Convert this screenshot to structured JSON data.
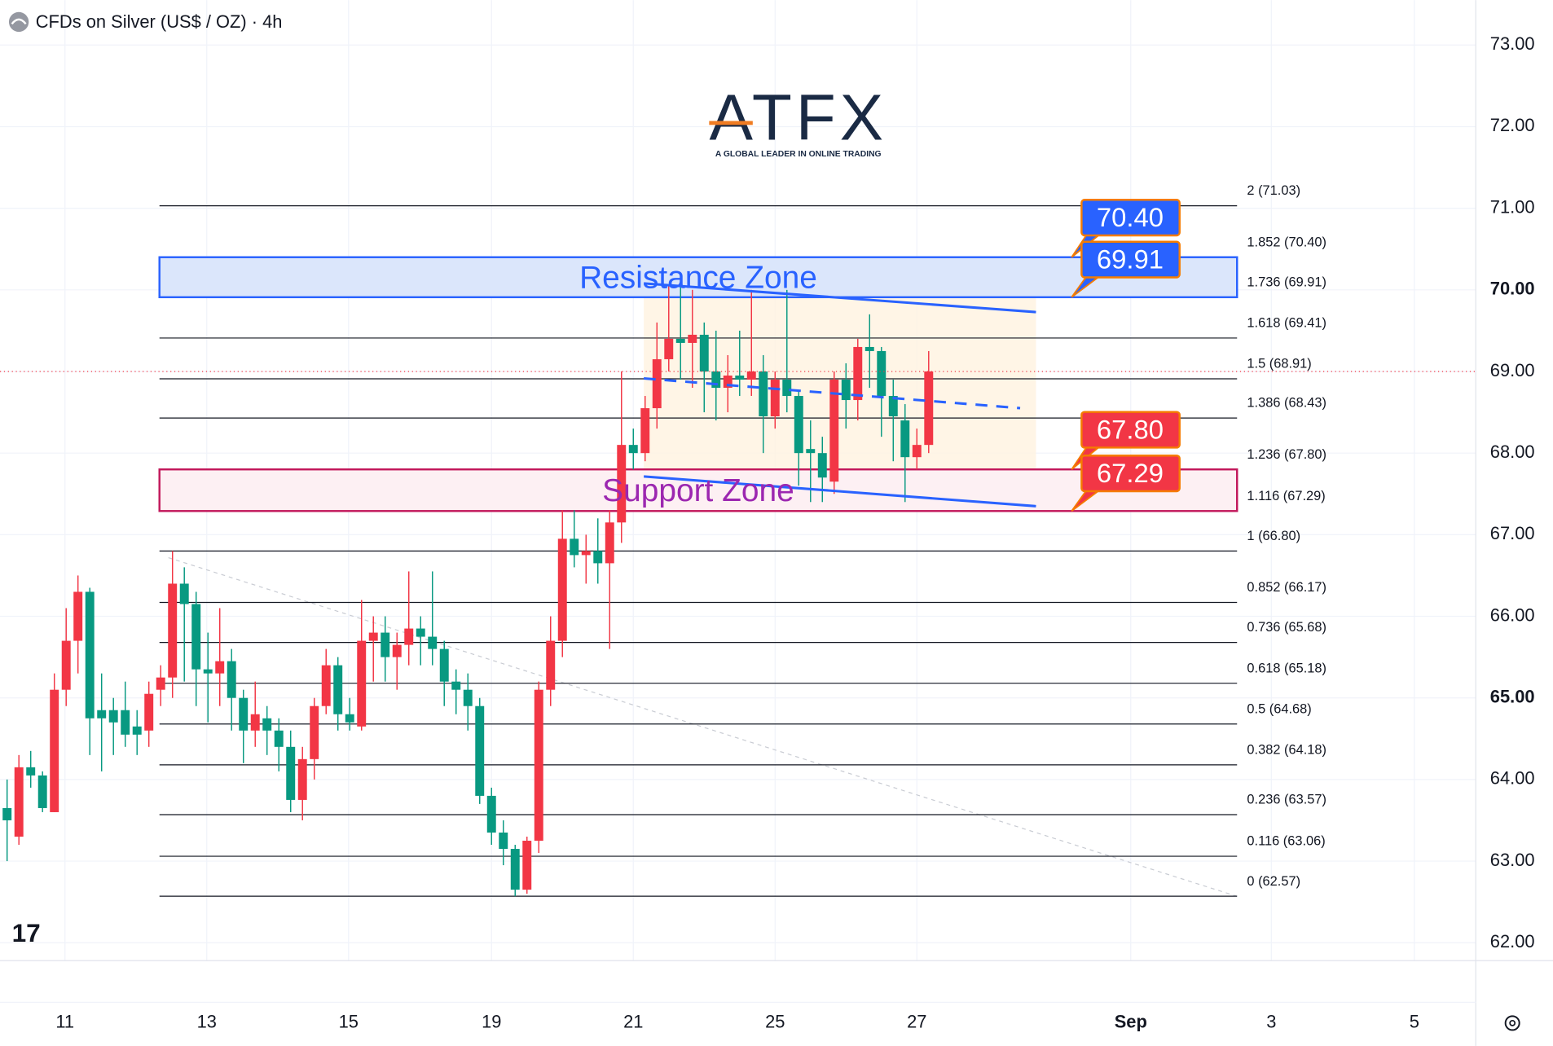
{
  "header": {
    "title": "CFDs on Silver (US$ / OZ) · 4h"
  },
  "logo": {
    "name": "ATFX",
    "tagline": "A GLOBAL LEADER IN ONLINE TRADING"
  },
  "chart_data": {
    "type": "candlestick",
    "open": [
      63.65,
      63.3,
      64.15,
      64.05,
      63.6,
      65.1,
      65.7,
      66.3,
      64.85,
      64.85,
      64.85,
      64.65,
      64.6,
      65.1,
      65.25,
      66.4,
      66.15,
      65.35,
      65.3,
      65.45,
      65.0,
      64.6,
      64.75,
      64.6,
      64.4,
      63.75,
      64.25,
      64.9,
      65.4,
      64.8,
      64.65,
      65.7,
      65.8,
      65.5,
      65.65,
      65.85,
      65.75,
      65.6,
      65.2,
      65.1,
      64.9,
      63.8,
      63.35,
      63.15,
      62.65,
      63.25,
      65.1,
      65.7,
      66.95,
      66.75,
      66.8,
      66.65,
      67.15,
      68.1,
      68.0,
      68.55,
      69.15,
      69.4,
      69.35,
      69.45,
      69.0,
      68.8,
      68.95,
      68.9,
      69.0,
      68.45,
      68.9,
      68.7,
      68.05,
      68.0,
      67.65,
      68.9,
      68.65,
      69.3,
      69.25,
      68.7,
      68.4,
      67.95,
      68.1
    ],
    "high": [
      64.0,
      64.3,
      64.35,
      64.1,
      65.3,
      66.1,
      66.5,
      66.35,
      65.3,
      65.0,
      65.2,
      64.85,
      65.2,
      65.4,
      66.8,
      66.6,
      66.3,
      65.8,
      66.1,
      65.6,
      65.1,
      65.2,
      64.9,
      64.75,
      64.6,
      64.4,
      65.0,
      65.6,
      65.5,
      65.0,
      66.2,
      66.0,
      66.0,
      65.8,
      66.55,
      66.0,
      66.55,
      65.7,
      65.35,
      65.3,
      65.0,
      63.9,
      63.5,
      63.2,
      63.3,
      65.2,
      66.0,
      67.3,
      67.3,
      67.0,
      67.2,
      67.3,
      69.0,
      68.3,
      68.7,
      69.6,
      70.05,
      70.1,
      70.0,
      69.6,
      69.5,
      69.2,
      69.5,
      70.0,
      69.2,
      69.0,
      70.0,
      68.75,
      68.4,
      68.2,
      69.0,
      69.1,
      69.4,
      69.7,
      69.3,
      68.9,
      68.6,
      68.3,
      69.25
    ],
    "low": [
      63.0,
      63.2,
      63.9,
      63.6,
      63.6,
      64.9,
      65.3,
      64.3,
      64.1,
      64.3,
      64.4,
      64.3,
      64.4,
      64.9,
      65.0,
      65.2,
      64.9,
      64.7,
      64.9,
      64.6,
      64.2,
      64.4,
      64.3,
      64.1,
      63.6,
      63.5,
      64.0,
      64.8,
      64.6,
      64.6,
      64.6,
      65.2,
      65.2,
      65.1,
      65.4,
      65.4,
      65.4,
      64.9,
      64.8,
      64.6,
      63.7,
      63.2,
      62.95,
      62.57,
      62.6,
      63.1,
      64.9,
      65.5,
      66.6,
      66.4,
      66.4,
      65.6,
      66.9,
      67.8,
      67.9,
      68.3,
      69.0,
      68.9,
      68.8,
      68.5,
      68.4,
      68.5,
      68.7,
      68.7,
      68.0,
      68.3,
      68.5,
      67.6,
      67.4,
      67.4,
      67.5,
      68.3,
      68.4,
      68.8,
      68.2,
      67.9,
      67.4,
      67.8,
      68.0
    ],
    "close": [
      63.5,
      64.15,
      64.05,
      63.65,
      65.1,
      65.7,
      66.3,
      64.75,
      64.75,
      64.7,
      64.55,
      64.55,
      65.05,
      65.25,
      66.4,
      66.15,
      65.35,
      65.3,
      65.45,
      65.0,
      64.6,
      64.8,
      64.6,
      64.4,
      63.75,
      64.25,
      64.9,
      65.4,
      64.8,
      64.7,
      65.7,
      65.8,
      65.5,
      65.65,
      65.85,
      65.75,
      65.6,
      65.2,
      65.1,
      64.9,
      63.8,
      63.35,
      63.15,
      62.65,
      63.25,
      65.1,
      65.7,
      66.95,
      66.75,
      66.8,
      66.65,
      67.15,
      68.1,
      68.0,
      68.55,
      69.15,
      69.4,
      69.35,
      69.45,
      69.0,
      68.8,
      68.95,
      68.9,
      69.0,
      68.45,
      68.9,
      68.7,
      68.0,
      68.0,
      67.7,
      68.9,
      68.65,
      69.3,
      69.25,
      68.7,
      68.45,
      67.95,
      68.1,
      69.0
    ],
    "up_color": "#f23645",
    "down_color": "#089981",
    "xlim": [
      -0.6,
      124.3
    ],
    "xticks": [
      {
        "value": 4.9,
        "label": "11"
      },
      {
        "value": 16.9,
        "label": "13"
      },
      {
        "value": 28.9,
        "label": "15"
      },
      {
        "value": 41.0,
        "label": "19"
      },
      {
        "value": 53.0,
        "label": "21"
      },
      {
        "value": 65.0,
        "label": "25"
      },
      {
        "value": 77.0,
        "label": "27"
      },
      {
        "value": 95.1,
        "label": "Sep"
      },
      {
        "value": 107.0,
        "label": "3"
      },
      {
        "value": 119.1,
        "label": "5"
      }
    ],
    "ylim": [
      61.78,
      73.55
    ],
    "yticks": [
      {
        "value": 62,
        "label": "62.00"
      },
      {
        "value": 63,
        "label": "63.00"
      },
      {
        "value": 64,
        "label": "64.00"
      },
      {
        "value": 65,
        "label": "65.00"
      },
      {
        "value": 66,
        "label": "66.00"
      },
      {
        "value": 67,
        "label": "67.00"
      },
      {
        "value": 68,
        "label": "68.00"
      },
      {
        "value": 69,
        "label": "69.00"
      },
      {
        "value": 70,
        "label": "70.00"
      },
      {
        "value": 71,
        "label": "71.00"
      },
      {
        "value": 72,
        "label": "72.00"
      },
      {
        "value": 73,
        "label": "73.00"
      }
    ],
    "grid": true,
    "fib_levels": [
      {
        "value": 71.03,
        "label": "2 (71.03)"
      },
      {
        "value": 70.4,
        "label": "1.852 (70.40)"
      },
      {
        "value": 69.91,
        "label": "1.736 (69.91)"
      },
      {
        "value": 69.41,
        "label": "1.618 (69.41)"
      },
      {
        "value": 68.91,
        "label": "1.5 (68.91)"
      },
      {
        "value": 68.43,
        "label": "1.386 (68.43)"
      },
      {
        "value": 67.8,
        "label": "1.236 (67.80)"
      },
      {
        "value": 67.29,
        "label": "1.116 (67.29)"
      },
      {
        "value": 66.8,
        "label": "1 (66.80)"
      },
      {
        "value": 66.17,
        "label": "0.852 (66.17)"
      },
      {
        "value": 65.68,
        "label": "0.736 (65.68)"
      },
      {
        "value": 65.18,
        "label": "0.618 (65.18)"
      },
      {
        "value": 64.68,
        "label": "0.5 (64.68)"
      },
      {
        "value": 64.18,
        "label": "0.382 (64.18)"
      },
      {
        "value": 63.57,
        "label": "0.236 (63.57)"
      },
      {
        "value": 63.06,
        "label": "0.116 (63.06)"
      },
      {
        "value": 62.57,
        "label": "0 (62.57)"
      }
    ],
    "zones": [
      {
        "name": "Resistance Zone",
        "top": 70.4,
        "bottom": 69.91,
        "top_label": "70.40",
        "bottom_label": "69.91",
        "color": "#2962ff",
        "fill": "#dbe6fb",
        "text_color": "#2962ff"
      },
      {
        "name": "Support Zone",
        "top": 67.8,
        "bottom": 67.29,
        "top_label": "67.80",
        "bottom_label": "67.29",
        "color": "#c2185b",
        "fill": "#fdf0f3",
        "text_color": "#9c27b0"
      }
    ]
  }
}
